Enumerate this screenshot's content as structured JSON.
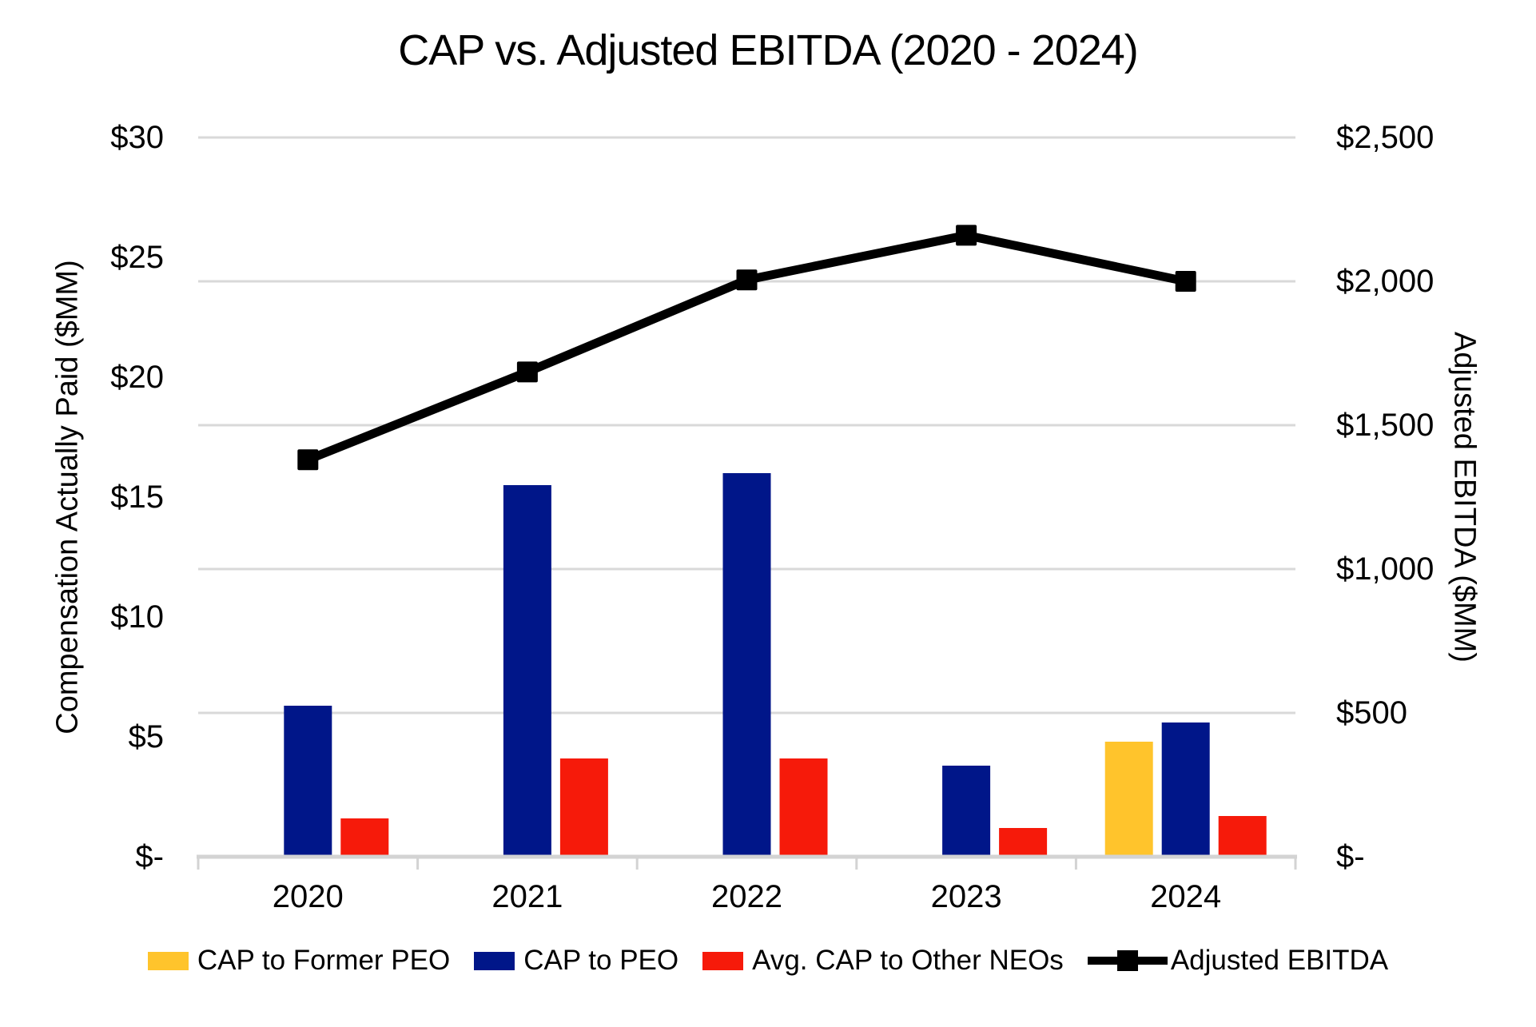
{
  "chart_data": {
    "type": "combo-bar-line",
    "title": "CAP vs. Adjusted EBITDA (2020 - 2024)",
    "categories": [
      "2020",
      "2021",
      "2022",
      "2023",
      "2024"
    ],
    "bar_series": [
      {
        "name": "CAP to Former PEO",
        "color": "#FFC42C",
        "axis": "left",
        "values": [
          null,
          null,
          null,
          null,
          4.8
        ]
      },
      {
        "name": "CAP to PEO",
        "color": "#001689",
        "axis": "left",
        "values": [
          6.3,
          15.5,
          16.0,
          3.8,
          5.6
        ]
      },
      {
        "name": "Avg. CAP to Other NEOs",
        "color": "#F61A0A",
        "axis": "left",
        "values": [
          1.6,
          4.1,
          4.1,
          1.2,
          1.7
        ]
      }
    ],
    "line_series": {
      "name": "Adjusted EBITDA",
      "color": "#000000",
      "axis": "right",
      "marker": "square",
      "values": [
        1380,
        1685,
        2005,
        2160,
        2000
      ]
    },
    "left_axis": {
      "title": "Compensation Actually Paid ($MM)",
      "min": 0,
      "max": 30,
      "tick_step": 5,
      "ticks": [
        "$30",
        "$25",
        "$20",
        "$15",
        "$10",
        "$5",
        "$-"
      ]
    },
    "right_axis": {
      "title": "Adjusted EBITDA ($MM)",
      "min": 0,
      "max": 2500,
      "tick_step": 500,
      "ticks": [
        "$2,500",
        "$2,000",
        "$1,500",
        "$1,000",
        "$500",
        "$-"
      ]
    },
    "grid": true,
    "legend_position": "bottom",
    "colors": {
      "gridline": "#D9D9D9",
      "axis_line": "#D3D3D3",
      "text": "#000000"
    }
  }
}
